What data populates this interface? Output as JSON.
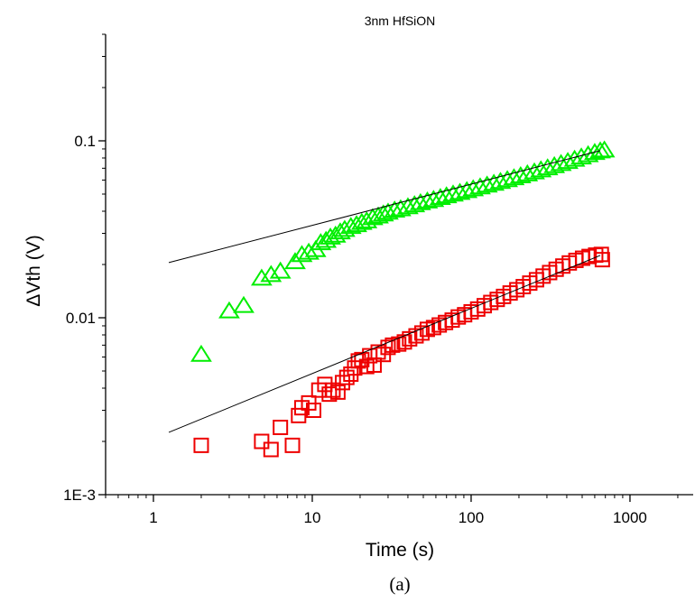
{
  "chart_data": {
    "type": "scatter",
    "title": "3nm HfSiON",
    "xlabel": "Time (s)",
    "ylabel": "ΔVth (V)",
    "caption": "(a)",
    "xscale": "log",
    "yscale": "log",
    "xlim": [
      0.5,
      2500
    ],
    "ylim": [
      0.001,
      0.4
    ],
    "xticks": [
      1,
      10,
      100,
      1000
    ],
    "xticklabels": [
      "1",
      "10",
      "100",
      "1000"
    ],
    "yticks": [
      0.001,
      0.01,
      0.1
    ],
    "yticklabels": [
      "1E-3",
      "0.01",
      "0.1"
    ],
    "grid": false,
    "legend": "none",
    "series": [
      {
        "marker": "triangle",
        "color": "#00ee00",
        "points": [
          [
            2,
            0.0062
          ],
          [
            3,
            0.0109
          ],
          [
            3.7,
            0.0117
          ],
          [
            4.8,
            0.0167
          ],
          [
            5.5,
            0.0175
          ],
          [
            6.3,
            0.0183
          ],
          [
            7.8,
            0.0207
          ],
          [
            8.6,
            0.0227
          ],
          [
            9.5,
            0.0234
          ],
          [
            10.5,
            0.0242
          ],
          [
            11.3,
            0.0265
          ],
          [
            12.2,
            0.0273
          ],
          [
            13,
            0.0285
          ],
          [
            14,
            0.0292
          ],
          [
            15,
            0.0305
          ],
          [
            16,
            0.0315
          ],
          [
            17.5,
            0.0327
          ],
          [
            19,
            0.0335
          ],
          [
            20.5,
            0.0345
          ],
          [
            22,
            0.0352
          ],
          [
            24,
            0.0367
          ],
          [
            26,
            0.0375
          ],
          [
            28,
            0.0385
          ],
          [
            30,
            0.0394
          ],
          [
            33,
            0.0405
          ],
          [
            36,
            0.0412
          ],
          [
            40,
            0.0423
          ],
          [
            44,
            0.0434
          ],
          [
            48,
            0.0446
          ],
          [
            53,
            0.0456
          ],
          [
            58,
            0.0465
          ],
          [
            64,
            0.0477
          ],
          [
            70,
            0.0488
          ],
          [
            77,
            0.0499
          ],
          [
            85,
            0.051
          ],
          [
            94,
            0.0522
          ],
          [
            103,
            0.0534
          ],
          [
            114,
            0.0548
          ],
          [
            126,
            0.0561
          ],
          [
            139,
            0.0574
          ],
          [
            153,
            0.0588
          ],
          [
            169,
            0.0602
          ],
          [
            186,
            0.0617
          ],
          [
            205,
            0.0633
          ],
          [
            226,
            0.0649
          ],
          [
            250,
            0.0666
          ],
          [
            275,
            0.0684
          ],
          [
            303,
            0.0702
          ],
          [
            334,
            0.0722
          ],
          [
            368,
            0.0742
          ],
          [
            406,
            0.0762
          ],
          [
            448,
            0.0785
          ],
          [
            494,
            0.0808
          ],
          [
            545,
            0.0832
          ],
          [
            600,
            0.0857
          ],
          [
            650,
            0.0875
          ],
          [
            690,
            0.0885
          ]
        ],
        "fit": {
          "x": [
            1.25,
            650
          ],
          "y": [
            0.0205,
            0.088
          ]
        }
      },
      {
        "marker": "square",
        "color": "#ee0000",
        "points": [
          [
            2,
            0.0019
          ],
          [
            4.8,
            0.002
          ],
          [
            5.5,
            0.0018
          ],
          [
            6.3,
            0.0024
          ],
          [
            7.5,
            0.0019
          ],
          [
            8.2,
            0.0028
          ],
          [
            8.6,
            0.0031
          ],
          [
            9.5,
            0.0033
          ],
          [
            10.2,
            0.003
          ],
          [
            11,
            0.0039
          ],
          [
            12,
            0.0042
          ],
          [
            12.8,
            0.0037
          ],
          [
            13.5,
            0.0039
          ],
          [
            14.5,
            0.0038
          ],
          [
            15.5,
            0.0043
          ],
          [
            16.5,
            0.0046
          ],
          [
            17.5,
            0.0048
          ],
          [
            18.5,
            0.0052
          ],
          [
            19.5,
            0.0057
          ],
          [
            20.5,
            0.0058
          ],
          [
            22,
            0.0053
          ],
          [
            23,
            0.0061
          ],
          [
            24.5,
            0.0054
          ],
          [
            26,
            0.0064
          ],
          [
            28,
            0.0062
          ],
          [
            30,
            0.0068
          ],
          [
            32,
            0.007
          ],
          [
            35,
            0.0071
          ],
          [
            38,
            0.0073
          ],
          [
            41,
            0.0076
          ],
          [
            45,
            0.0079
          ],
          [
            49,
            0.0082
          ],
          [
            53,
            0.0086
          ],
          [
            58,
            0.0088
          ],
          [
            63,
            0.0091
          ],
          [
            69,
            0.0094
          ],
          [
            76,
            0.0097
          ],
          [
            83,
            0.0101
          ],
          [
            91,
            0.0104
          ],
          [
            100,
            0.0108
          ],
          [
            110,
            0.0112
          ],
          [
            121,
            0.0117
          ],
          [
            133,
            0.0122
          ],
          [
            146,
            0.0127
          ],
          [
            160,
            0.0132
          ],
          [
            176,
            0.0138
          ],
          [
            194,
            0.0144
          ],
          [
            213,
            0.015
          ],
          [
            234,
            0.0157
          ],
          [
            258,
            0.0164
          ],
          [
            284,
            0.0172
          ],
          [
            312,
            0.018
          ],
          [
            343,
            0.0188
          ],
          [
            378,
            0.0196
          ],
          [
            415,
            0.0204
          ],
          [
            457,
            0.0211
          ],
          [
            503,
            0.0217
          ],
          [
            553,
            0.0222
          ],
          [
            608,
            0.0226
          ],
          [
            660,
            0.0228
          ],
          [
            670,
            0.0213
          ]
        ],
        "fit": {
          "x": [
            1.25,
            650
          ],
          "y": [
            0.00225,
            0.0225
          ]
        }
      }
    ]
  }
}
